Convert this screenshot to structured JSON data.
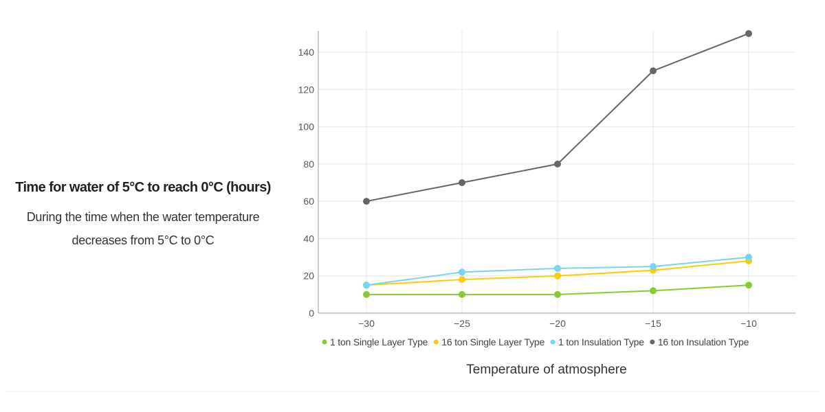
{
  "heading": {
    "title": "Time for water of 5°C to reach 0°C (hours)",
    "description": "During the time when the water temperature decreases from 5°C to 0°C"
  },
  "chart_data": {
    "type": "line",
    "title": "",
    "xlabel": "Temperature of atmosphere",
    "ylabel": "Time for water of 5°C to reach 0°C (hours)",
    "x": [
      -30,
      -25,
      -20,
      -15,
      -10
    ],
    "x_tick_labels": [
      "−30",
      "−25",
      "−20",
      "−15",
      "−10"
    ],
    "y_ticks": [
      0,
      20,
      40,
      60,
      80,
      100,
      120,
      140
    ],
    "y_tick_labels": [
      "0",
      "20",
      "40",
      "60",
      "80",
      "100",
      "120",
      "140"
    ],
    "xlim": [
      -32,
      -7.5
    ],
    "ylim": [
      0,
      150
    ],
    "grid": true,
    "legend_position": "bottom",
    "series": [
      {
        "name": "1 ton Single Layer Type",
        "color": "#88cc33",
        "values": [
          10,
          10,
          10,
          12,
          15
        ]
      },
      {
        "name": "16 ton Single Layer Type",
        "color": "#ffcc00",
        "values": [
          15,
          18,
          20,
          23,
          28
        ]
      },
      {
        "name": "1 ton Insulation Type",
        "color": "#77d4f6",
        "values": [
          15,
          22,
          24,
          25,
          30
        ]
      },
      {
        "name": "16 ton Insulation Type",
        "color": "#666666",
        "values": [
          60,
          70,
          80,
          130,
          150
        ]
      }
    ]
  }
}
